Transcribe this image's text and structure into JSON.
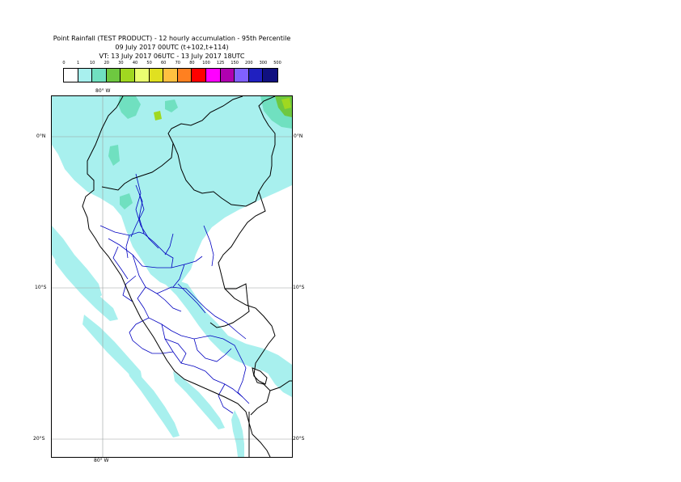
{
  "title": {
    "line1": "Point Rainfall (TEST PRODUCT) - 12 hourly accumulation - 95th Percentile",
    "line2": "09 July 2017 00UTC (t+102,t+114)",
    "line3": "VT: 13 July 2017 06UTC - 13 July 2017 18UTC"
  },
  "legend": {
    "labels": [
      "0",
      "1",
      "10",
      "20",
      "30",
      "40",
      "50",
      "60",
      "70",
      "80",
      "100",
      "125",
      "150",
      "200",
      "300",
      "500"
    ],
    "colors": [
      "#ffffff",
      "#a8f0ee",
      "#70e0c0",
      "#6ec840",
      "#a0d820",
      "#eaff70",
      "#e0e020",
      "#ffc040",
      "#ff8020",
      "#ff0000",
      "#ff00ff",
      "#b000b0",
      "#8060ff",
      "#2020c0",
      "#101080"
    ]
  },
  "map": {
    "longitude_label": "80° W",
    "latitude_labels": [
      "0°N",
      "10°S",
      "20°S"
    ],
    "colors": {
      "land": "#ffffff",
      "rain_light": "#a8f0ee",
      "rain_mid": "#70e0c0",
      "rain_heavy": "#6ec840",
      "rain_peak": "#a0d820",
      "country_border": "#000000",
      "region_border": "#0000c0",
      "grid": "#9aa0a0"
    }
  }
}
